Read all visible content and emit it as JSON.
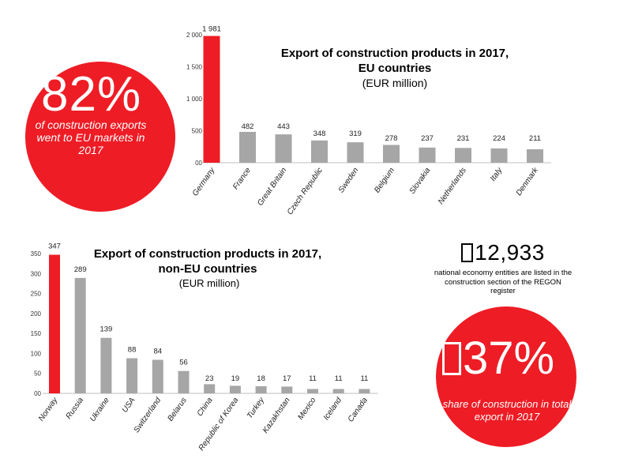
{
  "eu_highlight": {
    "percent": "82%",
    "caption": "of construction exports went to EU markets in 2017"
  },
  "eu_chart_title": "Export of construction products in 2017, EU countries",
  "eu_chart_unit": "(EUR million)",
  "nonEu_chart_title": "Export of construction products in 2017, non-EU countries",
  "nonEu_chart_unit": "(EUR million)",
  "regon": {
    "count": "12,933",
    "note": "national economy entities are listed in the construction section of the REGON register"
  },
  "share": {
    "percent": "37%",
    "caption": "share of construction in total export in 2017"
  },
  "colors": {
    "accent": "#ee1c25",
    "bar": "#a6a6a6"
  },
  "chart_data": [
    {
      "type": "bar",
      "title": "Export of construction products in 2017, EU countries",
      "ylabel": "(EUR million)",
      "categories": [
        "Germany",
        "France",
        "Great Britain",
        "Czech Republic",
        "Sweden",
        "Belgium",
        "Slovakia",
        "Netherlands",
        "Italy",
        "Denmark"
      ],
      "values": [
        1981,
        482,
        443,
        348,
        319,
        278,
        237,
        231,
        224,
        211
      ],
      "value_labels": [
        "1 981",
        "482",
        "443",
        "348",
        "319",
        "278",
        "237",
        "231",
        "224",
        "211"
      ],
      "ylim": [
        0,
        2000
      ],
      "yticks": [
        0,
        500,
        1000,
        1500,
        2000
      ],
      "ytick_labels": [
        "00",
        "500",
        "1 000",
        "1 500",
        "2 000"
      ],
      "highlight_index": 0
    },
    {
      "type": "bar",
      "title": "Export of construction products in 2017, non-EU countries",
      "ylabel": "(EUR million)",
      "categories": [
        "Norway",
        "Russia",
        "Ukraine",
        "USA",
        "Switzerland",
        "Belarus",
        "China",
        "Republic of Korea",
        "Turkey",
        "Kazakhstan",
        "Mexico",
        "Iceland",
        "Canada"
      ],
      "values": [
        347,
        289,
        139,
        88,
        84,
        56,
        23,
        19,
        18,
        17,
        11,
        11,
        11
      ],
      "value_labels": [
        "347",
        "289",
        "139",
        "88",
        "84",
        "56",
        "23",
        "19",
        "18",
        "17",
        "11",
        "11",
        "11"
      ],
      "ylim": [
        0,
        350
      ],
      "yticks": [
        0,
        50,
        100,
        150,
        200,
        250,
        300,
        350
      ],
      "ytick_labels": [
        "00",
        "50",
        "100",
        "150",
        "200",
        "250",
        "300",
        "350"
      ],
      "highlight_index": 0
    }
  ]
}
